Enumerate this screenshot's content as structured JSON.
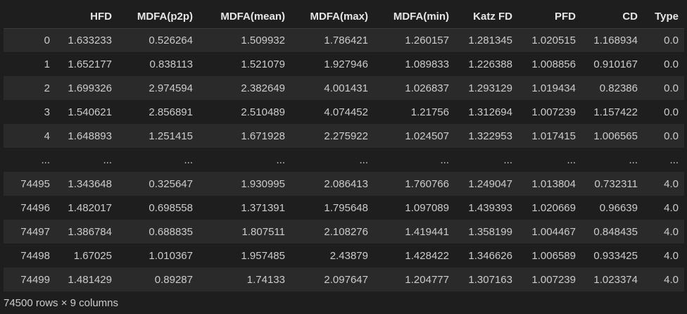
{
  "columns": [
    "",
    "HFD",
    "MDFA(p2p)",
    "MDFA(mean)",
    "MDFA(max)",
    "MDFA(min)",
    "Katz FD",
    "PFD",
    "CD",
    "Type"
  ],
  "rows": [
    [
      "0",
      "1.633233",
      "0.526264",
      "1.509932",
      "1.786421",
      "1.260157",
      "1.281345",
      "1.020515",
      "1.168934",
      "0.0"
    ],
    [
      "1",
      "1.652177",
      "0.838113",
      "1.521079",
      "1.927946",
      "1.089833",
      "1.226388",
      "1.008856",
      "0.910167",
      "0.0"
    ],
    [
      "2",
      "1.699326",
      "2.974594",
      "2.382649",
      "4.001431",
      "1.026837",
      "1.293129",
      "1.019434",
      "0.82386",
      "0.0"
    ],
    [
      "3",
      "1.540621",
      "2.856891",
      "2.510489",
      "4.074452",
      "1.21756",
      "1.312694",
      "1.007239",
      "1.157422",
      "0.0"
    ],
    [
      "4",
      "1.648893",
      "1.251415",
      "1.671928",
      "2.275922",
      "1.024507",
      "1.322953",
      "1.017415",
      "1.006565",
      "0.0"
    ],
    [
      "...",
      "...",
      "...",
      "...",
      "...",
      "...",
      "...",
      "...",
      "...",
      "..."
    ],
    [
      "74495",
      "1.343648",
      "0.325647",
      "1.930995",
      "2.086413",
      "1.760766",
      "1.249047",
      "1.013804",
      "0.732311",
      "4.0"
    ],
    [
      "74496",
      "1.482017",
      "0.698558",
      "1.371391",
      "1.795648",
      "1.097089",
      "1.439393",
      "1.020669",
      "0.96639",
      "4.0"
    ],
    [
      "74497",
      "1.386784",
      "0.688835",
      "1.807511",
      "2.108276",
      "1.419441",
      "1.358199",
      "1.004467",
      "0.848435",
      "4.0"
    ],
    [
      "74498",
      "1.67025",
      "1.010367",
      "1.957485",
      "2.43879",
      "1.428422",
      "1.346626",
      "1.006589",
      "0.933425",
      "4.0"
    ],
    [
      "74499",
      "1.481429",
      "0.89287",
      "1.74133",
      "2.097647",
      "1.204777",
      "1.307163",
      "1.007239",
      "1.023374",
      "4.0"
    ]
  ],
  "shape_text": "74500 rows × 9 columns"
}
